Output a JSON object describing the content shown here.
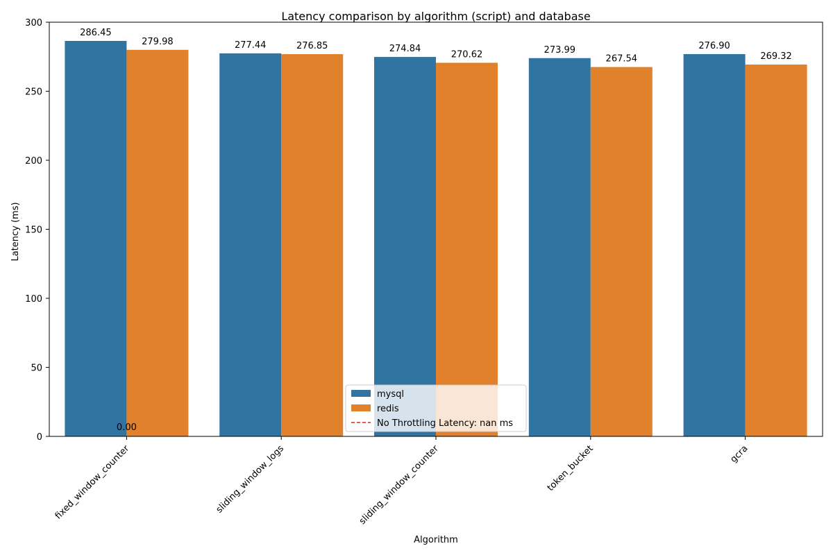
{
  "chart_data": {
    "type": "bar",
    "title": "Latency comparison by algorithm (script) and database",
    "xlabel": "Algorithm",
    "ylabel": "Latency (ms)",
    "ylim": [
      0,
      300
    ],
    "yticks": [
      0,
      50,
      100,
      150,
      200,
      250,
      300
    ],
    "categories": [
      "fixed_window_counter",
      "sliding_window_logs",
      "sliding_window_counter",
      "token_bucket",
      "gcra"
    ],
    "series": [
      {
        "name": "mysql",
        "color": "#3274a1",
        "values": [
          286.45,
          277.44,
          274.84,
          273.99,
          276.9
        ],
        "labels": [
          "286.45",
          "277.44",
          "274.84",
          "273.99",
          "276.90"
        ]
      },
      {
        "name": "redis",
        "color": "#e1812c",
        "values": [
          279.98,
          276.85,
          270.62,
          267.54,
          269.32
        ],
        "labels": [
          "279.98",
          "276.85",
          "270.62",
          "267.54",
          "269.32"
        ]
      }
    ],
    "extra_label": "0.00",
    "reference_line": {
      "label": "No Throttling Latency: nan ms",
      "color": "#d62728",
      "style": "dashed"
    },
    "legend_position": "lower-center",
    "grid": false
  }
}
